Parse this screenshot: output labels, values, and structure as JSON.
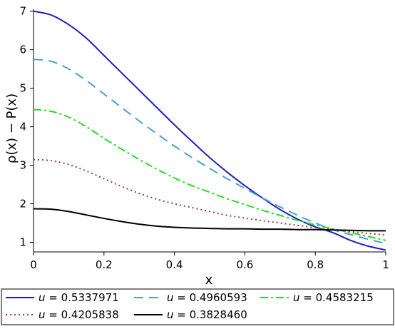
{
  "chart_data": {
    "type": "line",
    "title": "",
    "xlabel": "x",
    "ylabel": "ρ(x) − P(x)",
    "xlim": [
      0,
      1
    ],
    "ylim": [
      0.75,
      7.05
    ],
    "x_ticks": [
      "0",
      "0.2",
      "0.4",
      "0.6",
      "0.8",
      "1"
    ],
    "x_tick_values": [
      0,
      0.2,
      0.4,
      0.6,
      0.8,
      1
    ],
    "y_ticks": [
      "1",
      "2",
      "3",
      "4",
      "5",
      "6",
      "7"
    ],
    "y_tick_values": [
      1,
      2,
      3,
      4,
      5,
      6,
      7
    ],
    "grid": false,
    "legend_position": "bottom",
    "x": [
      0,
      0.05,
      0.1,
      0.15,
      0.2,
      0.25,
      0.3,
      0.35,
      0.4,
      0.45,
      0.5,
      0.55,
      0.6,
      0.65,
      0.7,
      0.75,
      0.8,
      0.85,
      0.9,
      0.95,
      1
    ],
    "series": [
      {
        "name": "u = 0.5337971",
        "label_var": "u",
        "label_value": "= 0.5337971",
        "color": "#1f1fbf",
        "style": "solid",
        "values": [
          7.0,
          6.9,
          6.65,
          6.3,
          5.85,
          5.4,
          4.95,
          4.5,
          4.05,
          3.62,
          3.2,
          2.82,
          2.47,
          2.15,
          1.85,
          1.6,
          1.4,
          1.25,
          1.05,
          0.9,
          0.8
        ]
      },
      {
        "name": "u = 0.4960593",
        "label_var": "u",
        "label_value": "= 0.4960593",
        "color": "#4a9fd4",
        "style": "dash",
        "values": [
          5.75,
          5.7,
          5.5,
          5.2,
          4.85,
          4.5,
          4.15,
          3.82,
          3.5,
          3.2,
          2.92,
          2.65,
          2.4,
          2.15,
          1.92,
          1.7,
          1.5,
          1.33,
          1.2,
          1.08,
          0.97
        ]
      },
      {
        "name": "u = 0.4583215",
        "label_var": "u",
        "label_value": "= 0.4583215",
        "color": "#22dd22",
        "style": "dashdot",
        "values": [
          4.45,
          4.4,
          4.25,
          4.0,
          3.7,
          3.42,
          3.15,
          2.9,
          2.67,
          2.47,
          2.3,
          2.13,
          1.98,
          1.83,
          1.7,
          1.57,
          1.45,
          1.35,
          1.25,
          1.15,
          1.05
        ]
      },
      {
        "name": "u = 0.4205838",
        "label_var": "u",
        "label_value": "= 0.4205838",
        "color": "#a03c3c",
        "style": "dot",
        "values": [
          3.15,
          3.12,
          3.02,
          2.85,
          2.65,
          2.45,
          2.27,
          2.12,
          2.0,
          1.9,
          1.8,
          1.7,
          1.63,
          1.56,
          1.5,
          1.44,
          1.38,
          1.33,
          1.28,
          1.23,
          1.19
        ]
      },
      {
        "name": "u = 0.3828460",
        "label_var": "u",
        "label_value": "= 0.3828460",
        "color": "#000000",
        "style": "solid",
        "values": [
          1.87,
          1.86,
          1.8,
          1.71,
          1.62,
          1.54,
          1.47,
          1.42,
          1.39,
          1.37,
          1.36,
          1.35,
          1.35,
          1.34,
          1.34,
          1.33,
          1.33,
          1.32,
          1.31,
          1.3,
          1.3
        ]
      }
    ]
  }
}
